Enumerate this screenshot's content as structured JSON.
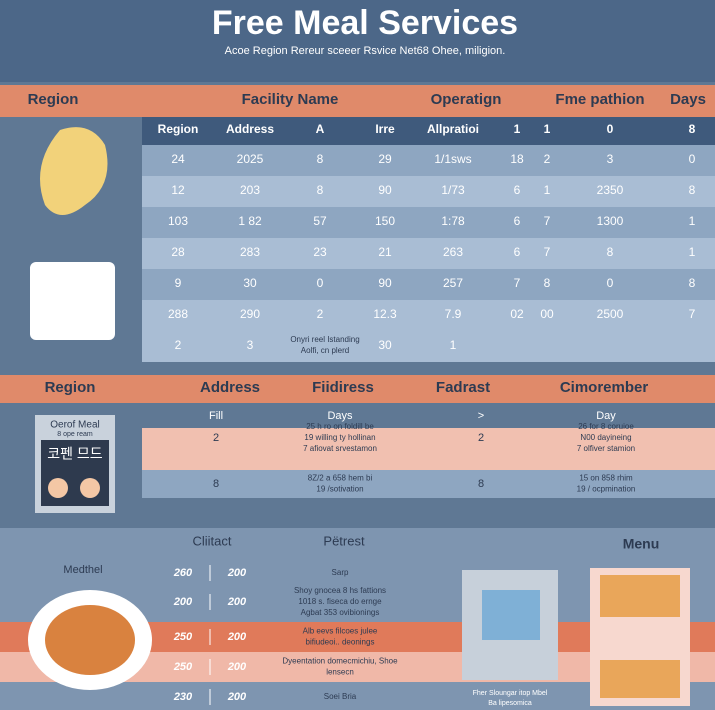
{
  "header": {
    "title": "Free Meal Services",
    "subtitle": "Acoe Region Rereur sceeer Rsvice Net68 Ohee, miligion."
  },
  "section1": {
    "headings": [
      "Region",
      "Facility Name",
      "Operatign",
      "Fme pathion",
      "Days"
    ],
    "table": {
      "columns": [
        "Region",
        "Address",
        "A",
        "Irre",
        "Allpratioi",
        "1",
        "1",
        "0",
        "8"
      ],
      "rows": [
        [
          "24",
          "2025",
          "8",
          "29",
          "1/1sws",
          "18",
          "2",
          "3",
          "0"
        ],
        [
          "12",
          "203",
          "8",
          "90",
          "1/73",
          "6",
          "1",
          "2350",
          "8"
        ],
        [
          "103",
          "1 82",
          "57",
          "150",
          "1:78",
          "6",
          "7",
          "1300",
          "1"
        ],
        [
          "28",
          "283",
          "23",
          "21",
          "263",
          "6",
          "7",
          "8",
          "1"
        ],
        [
          "9",
          "30",
          "0",
          "90",
          "257",
          "7",
          "8",
          "0",
          "8"
        ],
        [
          "288",
          "290",
          "2",
          "12.3",
          "7.9",
          "02",
          "00",
          "2500",
          "7"
        ]
      ],
      "last_row": {
        "region": "2",
        "address": "3",
        "note": [
          "Onyri reel Istanding",
          "Aolfi, cn plerd"
        ],
        "irre": "30",
        "allocation": "1"
      }
    }
  },
  "section2": {
    "headings": [
      "Region",
      "Address",
      "Fiidiress",
      "Fadrast",
      "Cimorember"
    ],
    "subheadings": [
      "Fill",
      "Days",
      ">",
      "Day"
    ],
    "rows": [
      {
        "fill": "2",
        "days": [
          "25 h ro on foldill be",
          "19 willing ty hollinan",
          "7 afiovat srvestamon"
        ],
        "next": "2",
        "day": [
          "26 for 8 coruioe",
          "N00 dayineing",
          "7 olfiver stamion"
        ]
      },
      {
        "fill": "8",
        "days": [
          "8Z/2 a 658 hem bi",
          "19 /sotivation"
        ],
        "next": "8",
        "day": [
          "15 on 858 rhim",
          "19 / ocpmination"
        ]
      }
    ],
    "card": {
      "title": "Oerof Meal",
      "subtitle": "8 ope ream",
      "sign": "코펜 므드"
    }
  },
  "section3": {
    "contact": "Cliitact",
    "pitrest": "Pëtrest",
    "menu": "Menu",
    "method": "Medthel",
    "rows": [
      {
        "a": "260",
        "b": "200",
        "text": [
          "Sarp"
        ]
      },
      {
        "a": "200",
        "b": "200",
        "text": [
          "Shoy gnocea 8 hs fattions",
          "1018 s. fiseca do ernge",
          "Agbat 353 ovibionings"
        ]
      },
      {
        "a": "250",
        "b": "200",
        "text": [
          "Alb eevs filcoes julee",
          "bifiudeoi.. deonings"
        ]
      },
      {
        "a": "250",
        "b": "200",
        "text": [
          "Dyeentation domecmichiu, Shoe",
          "lensecn"
        ]
      },
      {
        "a": "230",
        "b": "200",
        "text": [
          "Soei Bria"
        ]
      }
    ],
    "kiosk_caption": [
      "Fher Sloungar itop Mbel",
      "Ba lipesomica"
    ]
  }
}
